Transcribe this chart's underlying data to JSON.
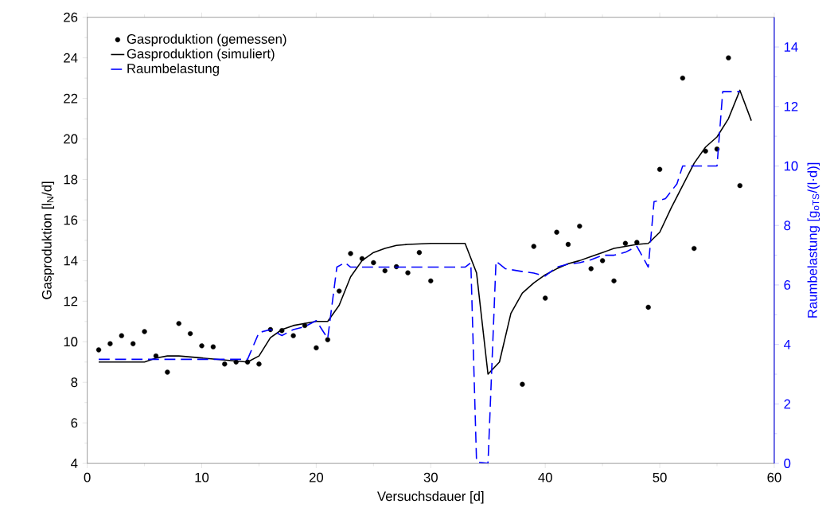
{
  "chart_data": {
    "type": "line",
    "xlabel": "Versuchsdauer [d]",
    "ylabel": "Gasproduktion [l$_{N}$/d]",
    "y2label": "Raumbelastung [g$_{oTS}$/(l·d)]",
    "xlim": [
      0,
      60
    ],
    "xticks": [
      0,
      10,
      20,
      30,
      40,
      50,
      60
    ],
    "ylim": [
      4,
      26
    ],
    "yticks": [
      4,
      6,
      8,
      10,
      12,
      14,
      16,
      18,
      20,
      22,
      24,
      26
    ],
    "y2lim": [
      0,
      15
    ],
    "y2ticks": [
      0,
      2,
      4,
      6,
      8,
      10,
      12,
      14
    ],
    "legend": "top left",
    "series": [
      {
        "name": "Gasproduktion (gemessen)",
        "type": "scatter",
        "marker": "circle",
        "color": "#000000",
        "x": [
          1,
          2,
          3,
          4,
          5,
          6,
          7,
          8,
          9,
          10,
          11,
          12,
          13,
          14,
          15,
          16,
          17,
          18,
          19,
          20,
          21,
          22,
          23,
          24,
          25,
          26,
          27,
          28,
          29,
          30,
          38,
          39,
          40,
          41,
          42,
          43,
          44,
          45,
          46,
          47,
          48,
          49,
          50,
          52,
          53,
          54,
          55,
          56,
          57
        ],
        "values": [
          9.6,
          9.9,
          10.3,
          9.9,
          10.5,
          9.3,
          8.5,
          10.9,
          10.4,
          9.8,
          9.75,
          8.9,
          9.0,
          9.0,
          8.9,
          10.6,
          10.55,
          10.3,
          10.8,
          9.7,
          10.1,
          12.5,
          14.35,
          14.1,
          13.9,
          13.5,
          13.7,
          13.4,
          14.4,
          13.0,
          7.9,
          14.7,
          12.15,
          15.4,
          14.8,
          15.7,
          13.6,
          14.0,
          13.0,
          14.85,
          14.9,
          11.7,
          18.5,
          23.0,
          14.6,
          19.4,
          19.5,
          24.0,
          17.7
        ]
      },
      {
        "name": "Gasproduktion (simuliert)",
        "line_style": "solid",
        "color": "#000000",
        "x": [
          1,
          5,
          6,
          7,
          8,
          10,
          12,
          14,
          15,
          16,
          17,
          18,
          19,
          20,
          21,
          22,
          23,
          24,
          25,
          26,
          27,
          28,
          30,
          33,
          34,
          35,
          36,
          37,
          38,
          39,
          40,
          41,
          42,
          43,
          44,
          45,
          46,
          47,
          48,
          49,
          50,
          51,
          52,
          53,
          54,
          55,
          56,
          57,
          58
        ],
        "values": [
          9.0,
          9.0,
          9.2,
          9.3,
          9.3,
          9.2,
          9.1,
          9.0,
          9.3,
          10.2,
          10.6,
          10.8,
          10.9,
          11.0,
          11.0,
          11.8,
          13.2,
          14.0,
          14.4,
          14.6,
          14.75,
          14.8,
          14.85,
          14.85,
          13.4,
          8.4,
          9.0,
          11.4,
          12.4,
          12.9,
          13.3,
          13.6,
          13.85,
          14.0,
          14.2,
          14.4,
          14.6,
          14.7,
          14.8,
          14.85,
          15.4,
          16.6,
          17.7,
          18.8,
          19.6,
          20.1,
          21.0,
          22.4,
          20.9
        ]
      },
      {
        "name": "Raumbelastung",
        "line_style": "dashed",
        "axis": "y2",
        "color": "#0000ff",
        "x": [
          1,
          14,
          15,
          16,
          17,
          18,
          19,
          20,
          21,
          21.8,
          22.5,
          23,
          33,
          33.5,
          34,
          35,
          35.7,
          36.5,
          38,
          39,
          40,
          41,
          42,
          43,
          44,
          45,
          46,
          47,
          48,
          49,
          49.5,
          50.5,
          51.5,
          52,
          55,
          55.5,
          57
        ],
        "values": [
          3.5,
          3.5,
          4.4,
          4.5,
          4.3,
          4.5,
          4.6,
          4.8,
          4.2,
          6.6,
          6.75,
          6.6,
          6.6,
          6.75,
          0.05,
          0.0,
          6.8,
          6.55,
          6.45,
          6.4,
          6.3,
          6.6,
          6.7,
          6.75,
          6.85,
          7.0,
          7.0,
          7.1,
          7.3,
          6.6,
          8.8,
          8.9,
          9.4,
          10.0,
          10.0,
          12.5,
          12.5
        ]
      }
    ]
  }
}
